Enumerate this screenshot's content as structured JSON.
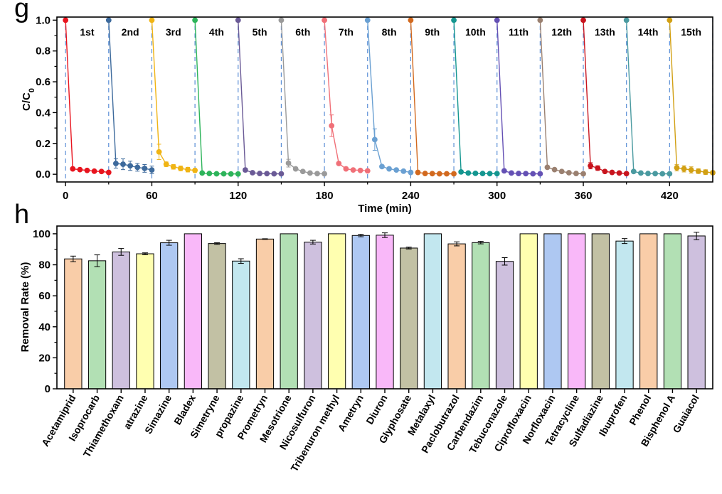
{
  "chart_data": [
    {
      "panel": "g",
      "type": "line",
      "xlabel": "Time (min)",
      "ylabel": "C/C0",
      "ylabel_main": "C/C",
      "ylabel_sub": "0",
      "xlim": [
        -6,
        450
      ],
      "ylim": [
        -0.05,
        1.02
      ],
      "xticks": [
        0,
        60,
        120,
        180,
        240,
        300,
        360,
        420
      ],
      "yticks": [
        0.0,
        0.2,
        0.4,
        0.6,
        0.8,
        1.0
      ],
      "ytick_labels": [
        "0.0",
        "0.2",
        "0.4",
        "0.6",
        "0.8",
        "1.0"
      ],
      "cycle_boundaries": [
        0,
        30,
        60,
        90,
        120,
        150,
        180,
        210,
        240,
        270,
        300,
        330,
        360,
        390,
        420,
        450
      ],
      "cycle_times": [
        0,
        5,
        10,
        15,
        20,
        25,
        30
      ],
      "series": [
        {
          "name": "1st",
          "color": "#e8141e",
          "values": [
            1.0,
            0.035,
            0.03,
            0.025,
            0.02,
            0.018,
            0.012
          ],
          "errors": [
            0,
            0,
            0,
            0,
            0,
            0,
            0
          ]
        },
        {
          "name": "2nd",
          "color": "#3d6a9c",
          "values": [
            1.0,
            0.07,
            0.065,
            0.055,
            0.045,
            0.038,
            0.028
          ],
          "errors": [
            0,
            0.03,
            0.035,
            0.03,
            0.025,
            0.025,
            0.025
          ]
        },
        {
          "name": "3rd",
          "color": "#f0b414",
          "values": [
            1.0,
            0.145,
            0.065,
            0.048,
            0.038,
            0.03,
            0.025
          ],
          "errors": [
            0,
            0.05,
            0.015,
            0.015,
            0.015,
            0.015,
            0.012
          ]
        },
        {
          "name": "4th",
          "color": "#2db45a",
          "values": [
            1.0,
            0.008,
            0.005,
            0.003,
            0.003,
            0.002,
            0.002
          ],
          "errors": [
            0,
            0,
            0,
            0,
            0,
            0,
            0
          ]
        },
        {
          "name": "5th",
          "color": "#6a5a96",
          "values": [
            1.0,
            0.028,
            0.01,
            0.005,
            0.004,
            0.003,
            0.003
          ],
          "errors": [
            0,
            0.012,
            0,
            0,
            0,
            0,
            0
          ]
        },
        {
          "name": "6th",
          "color": "#9a9a9a",
          "values": [
            1.0,
            0.072,
            0.035,
            0.018,
            0.008,
            0.004,
            0.003
          ],
          "errors": [
            0,
            0.025,
            0,
            0,
            0,
            0,
            0
          ]
        },
        {
          "name": "7th",
          "color": "#f07078",
          "values": [
            1.0,
            0.315,
            0.07,
            0.035,
            0.028,
            0.025,
            0.022
          ],
          "errors": [
            0,
            0.07,
            0,
            0,
            0,
            0,
            0
          ]
        },
        {
          "name": "8th",
          "color": "#6aa0d2",
          "values": [
            1.0,
            0.225,
            0.05,
            0.035,
            0.028,
            0.02,
            0.012
          ],
          "errors": [
            0,
            0.07,
            0,
            0,
            0,
            0,
            0
          ]
        },
        {
          "name": "9th",
          "color": "#d2691e",
          "values": [
            1.0,
            0.012,
            0.005,
            0.004,
            0.003,
            0.003,
            0.003
          ],
          "errors": [
            0,
            0,
            0,
            0,
            0,
            0,
            0
          ]
        },
        {
          "name": "10th",
          "color": "#149690",
          "values": [
            1.0,
            0.015,
            0.008,
            0.006,
            0.005,
            0.004,
            0.004
          ],
          "errors": [
            0,
            0,
            0,
            0,
            0,
            0,
            0
          ]
        },
        {
          "name": "11th",
          "color": "#6450b4",
          "values": [
            1.0,
            0.022,
            0.008,
            0.005,
            0.004,
            0.003,
            0.003
          ],
          "errors": [
            0,
            0,
            0,
            0,
            0,
            0,
            0
          ]
        },
        {
          "name": "12th",
          "color": "#9a8070",
          "values": [
            1.0,
            0.045,
            0.03,
            0.018,
            0.01,
            0.005,
            0.003
          ],
          "errors": [
            0,
            0,
            0,
            0,
            0,
            0,
            0
          ]
        },
        {
          "name": "13th",
          "color": "#c8141e",
          "values": [
            1.0,
            0.055,
            0.04,
            0.018,
            0.012,
            0.008,
            0.004
          ],
          "errors": [
            0,
            0.02,
            0.015,
            0,
            0,
            0,
            0
          ]
        },
        {
          "name": "14th",
          "color": "#4a9aa0",
          "values": [
            1.0,
            0.018,
            0.008,
            0.005,
            0.004,
            0.003,
            0.003
          ],
          "errors": [
            0,
            0,
            0,
            0,
            0,
            0,
            0
          ]
        },
        {
          "name": "15th",
          "color": "#d2a014",
          "values": [
            1.0,
            0.042,
            0.035,
            0.028,
            0.02,
            0.014,
            0.01
          ],
          "errors": [
            0,
            0.02,
            0.02,
            0.02,
            0.015,
            0.015,
            0.012
          ]
        }
      ]
    },
    {
      "panel": "h",
      "type": "bar",
      "ylabel": "Removal Rate (%)",
      "ylim": [
        0,
        105
      ],
      "yticks": [
        0,
        20,
        40,
        60,
        80,
        100
      ],
      "categories": [
        "Acetamiprid",
        "Isoprocarb",
        "Thiamethoxam",
        "atrazine",
        "Simazine",
        "Bladex",
        "Simetryne",
        "propazine",
        "Prometryn",
        "Mesotrione",
        "Nicosulfuron",
        "Tribenuron methyl",
        "Ametryn",
        "Diuron",
        "Glyphosate",
        "Metalaxyl",
        "Paclobutrazol",
        "Carbendazim",
        "Tebuconazole",
        "Ciprofloxacin",
        "Norfloxacin",
        "Tetracycline",
        "Sulfadiazine",
        "Ibuprofen",
        "Phenol",
        "Bisphenol A",
        "Guaiacol"
      ],
      "values": [
        83.8,
        82.6,
        88.3,
        87.1,
        94.2,
        100,
        93.7,
        82.4,
        96.6,
        100,
        94.6,
        100,
        98.9,
        99.1,
        90.8,
        100,
        93.5,
        94.3,
        82.2,
        100,
        100,
        100,
        100,
        95.3,
        100,
        100,
        98.6
      ],
      "errors": [
        1.8,
        3.8,
        2.2,
        0.6,
        1.6,
        0,
        0.5,
        1.5,
        0.2,
        0,
        1.2,
        0,
        0.8,
        1.5,
        0.6,
        0,
        1.3,
        0.8,
        2.4,
        0,
        0,
        0,
        0,
        1.6,
        0,
        0,
        2.4
      ],
      "colors": [
        "#f9cda8",
        "#b2e0b4",
        "#cec0de",
        "#ffffb0",
        "#aec8f2",
        "#f9b8f9",
        "#c2c1a4",
        "#c2e7ef",
        "#f9cda8",
        "#b2e0b4",
        "#cec0de",
        "#ffffb0",
        "#aec8f2",
        "#f9b8f9",
        "#c2c1a4",
        "#c2e7ef",
        "#f9cda8",
        "#b2e0b4",
        "#cec0de",
        "#ffffb0",
        "#aec8f2",
        "#f9b8f9",
        "#c2c1a4",
        "#c2e7ef",
        "#f9cda8",
        "#b2e0b4",
        "#cec0de"
      ]
    }
  ],
  "panels": {
    "g": "g",
    "h": "h"
  }
}
